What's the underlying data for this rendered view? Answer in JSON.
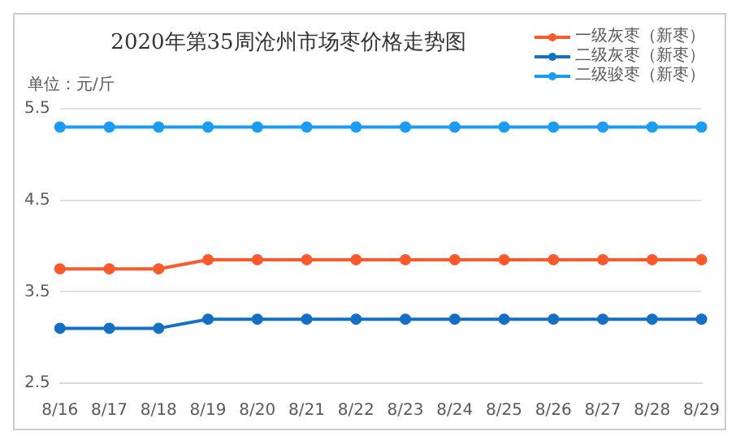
{
  "chart_data": {
    "type": "line",
    "title": "2020年第35周沧州市场枣价格走势图",
    "ylabel": "单位：元/斤",
    "categories": [
      "8/16",
      "8/17",
      "8/18",
      "8/19",
      "8/20",
      "8/21",
      "8/22",
      "8/23",
      "8/24",
      "8/25",
      "8/26",
      "8/27",
      "8/28",
      "8/29"
    ],
    "series": [
      {
        "name": "一级灰枣（新枣）",
        "color": "#fc5a2c",
        "values": [
          3.75,
          3.75,
          3.75,
          3.85,
          3.85,
          3.85,
          3.85,
          3.85,
          3.85,
          3.85,
          3.85,
          3.85,
          3.85,
          3.85
        ]
      },
      {
        "name": "二级灰枣（新枣）",
        "color": "#1370c4",
        "values": [
          3.1,
          3.1,
          3.1,
          3.2,
          3.2,
          3.2,
          3.2,
          3.2,
          3.2,
          3.2,
          3.2,
          3.2,
          3.2,
          3.2
        ]
      },
      {
        "name": "二级骏枣（新枣）",
        "color": "#1b9cf4",
        "values": [
          5.3,
          5.3,
          5.3,
          5.3,
          5.3,
          5.3,
          5.3,
          5.3,
          5.3,
          5.3,
          5.3,
          5.3,
          5.3,
          5.3
        ]
      }
    ],
    "ylim": [
      2.5,
      5.5
    ],
    "yticks": [
      2.5,
      3.5,
      4.5,
      5.5
    ],
    "grid": "y",
    "legend": "top right",
    "marker": "circle",
    "line_style": "solid"
  }
}
